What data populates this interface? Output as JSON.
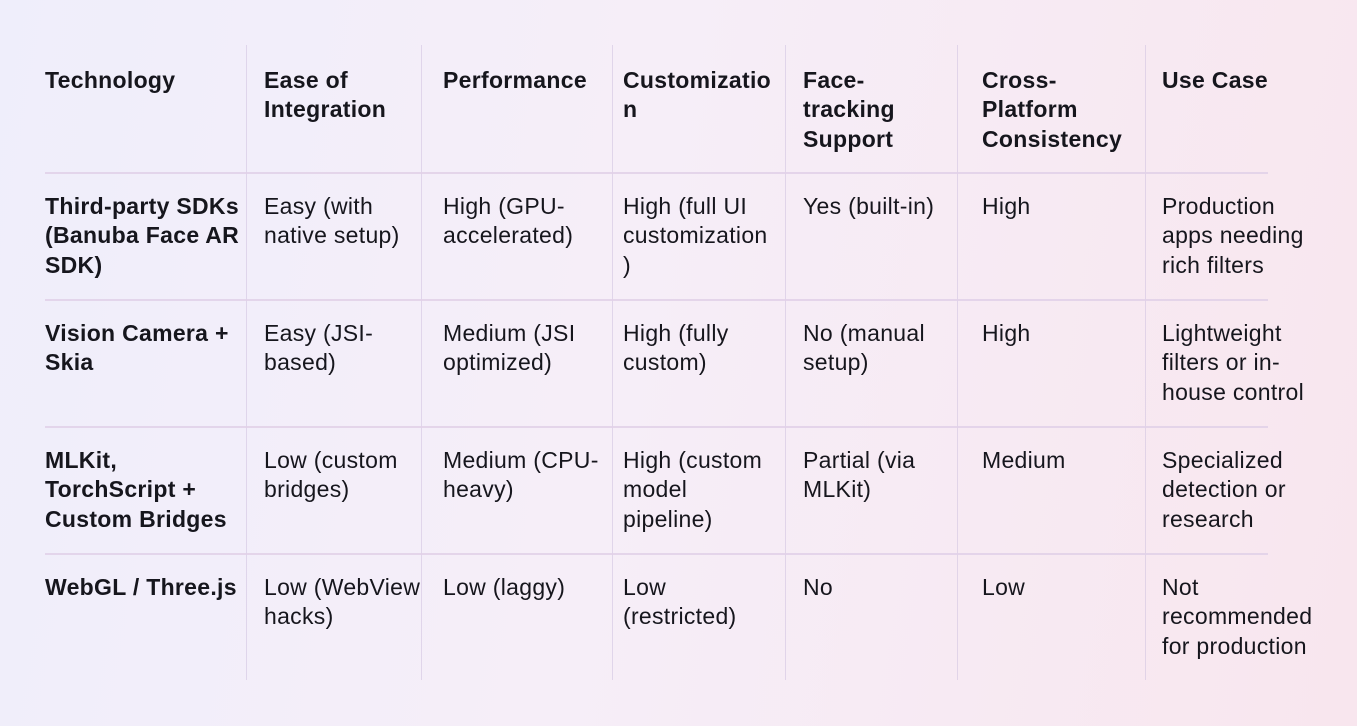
{
  "table": {
    "header": [
      "Technology",
      "Ease of Integration",
      "Performance",
      "Customization",
      "Face-tracking Support",
      "Cross-Platform Consistency",
      "Use Case"
    ],
    "rows": [
      [
        "Third-party SDKs (Banuba Face AR SDK)",
        "Easy (with native setup)",
        "High (GPU-accelerated)",
        "High (full UI customization)",
        "Yes (built-in)",
        "High",
        "Production apps needing rich filters"
      ],
      [
        "Vision Camera + Skia",
        "Easy (JSI-based)",
        "Medium (JSI optimized)",
        "High (fully custom)",
        "No (manual setup)",
        "High",
        "Lightweight filters or in-house control"
      ],
      [
        "MLKit, TorchScript + Custom Bridges",
        "Low (custom bridges)",
        "Medium (CPU-heavy)",
        "High (custom model pipeline)",
        "Partial (via MLKit)",
        "Medium",
        "Specialized detection or research"
      ],
      [
        "WebGL / Three.js",
        "Low (WebView hacks)",
        "Low (laggy)",
        "Low (restricted)",
        "No",
        "Low",
        "Not recommended for production"
      ]
    ]
  }
}
